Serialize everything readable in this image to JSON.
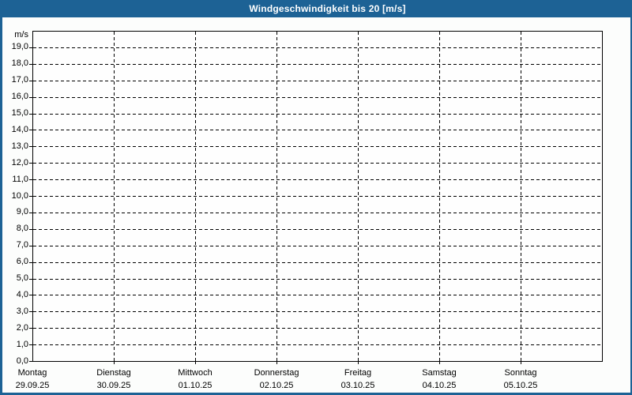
{
  "window": {
    "title": "Windgeschwindigkeit bis 20 [m/s]"
  },
  "colors": {
    "titlebar_bg": "#1d6295",
    "titlebar_text": "#ffffff",
    "frame_border": "#1d6295",
    "page_bg": "#fcfdfc",
    "plot_bg": "#fefefe",
    "grid_line": "#000000",
    "label_text": "#000000"
  },
  "chart_data": {
    "type": "line",
    "title": "Windgeschwindigkeit bis 20 [m/s]",
    "ylabel": "m/s",
    "xlabel": "",
    "ylim": [
      0,
      20
    ],
    "ytick_interval": 1.0,
    "ytick_labels": [
      "0,0",
      "1,0",
      "2,0",
      "3,0",
      "4,0",
      "5,0",
      "6,0",
      "7,0",
      "8,0",
      "9,0",
      "10,0",
      "11,0",
      "12,0",
      "13,0",
      "14,0",
      "15,0",
      "16,0",
      "17,0",
      "18,0",
      "19,0"
    ],
    "x_categories": [
      {
        "day": "Montag",
        "date": "29.09.25"
      },
      {
        "day": "Dienstag",
        "date": "30.09.25"
      },
      {
        "day": "Mittwoch",
        "date": "01.10.25"
      },
      {
        "day": "Donnerstag",
        "date": "02.10.25"
      },
      {
        "day": "Freitag",
        "date": "03.10.25"
      },
      {
        "day": "Samstag",
        "date": "04.10.25"
      },
      {
        "day": "Sonntag",
        "date": "05.10.25"
      }
    ],
    "grid": "dashed; horizontal line every 1.0 m/s, vertical line at each day boundary",
    "legend": "none",
    "series": []
  }
}
